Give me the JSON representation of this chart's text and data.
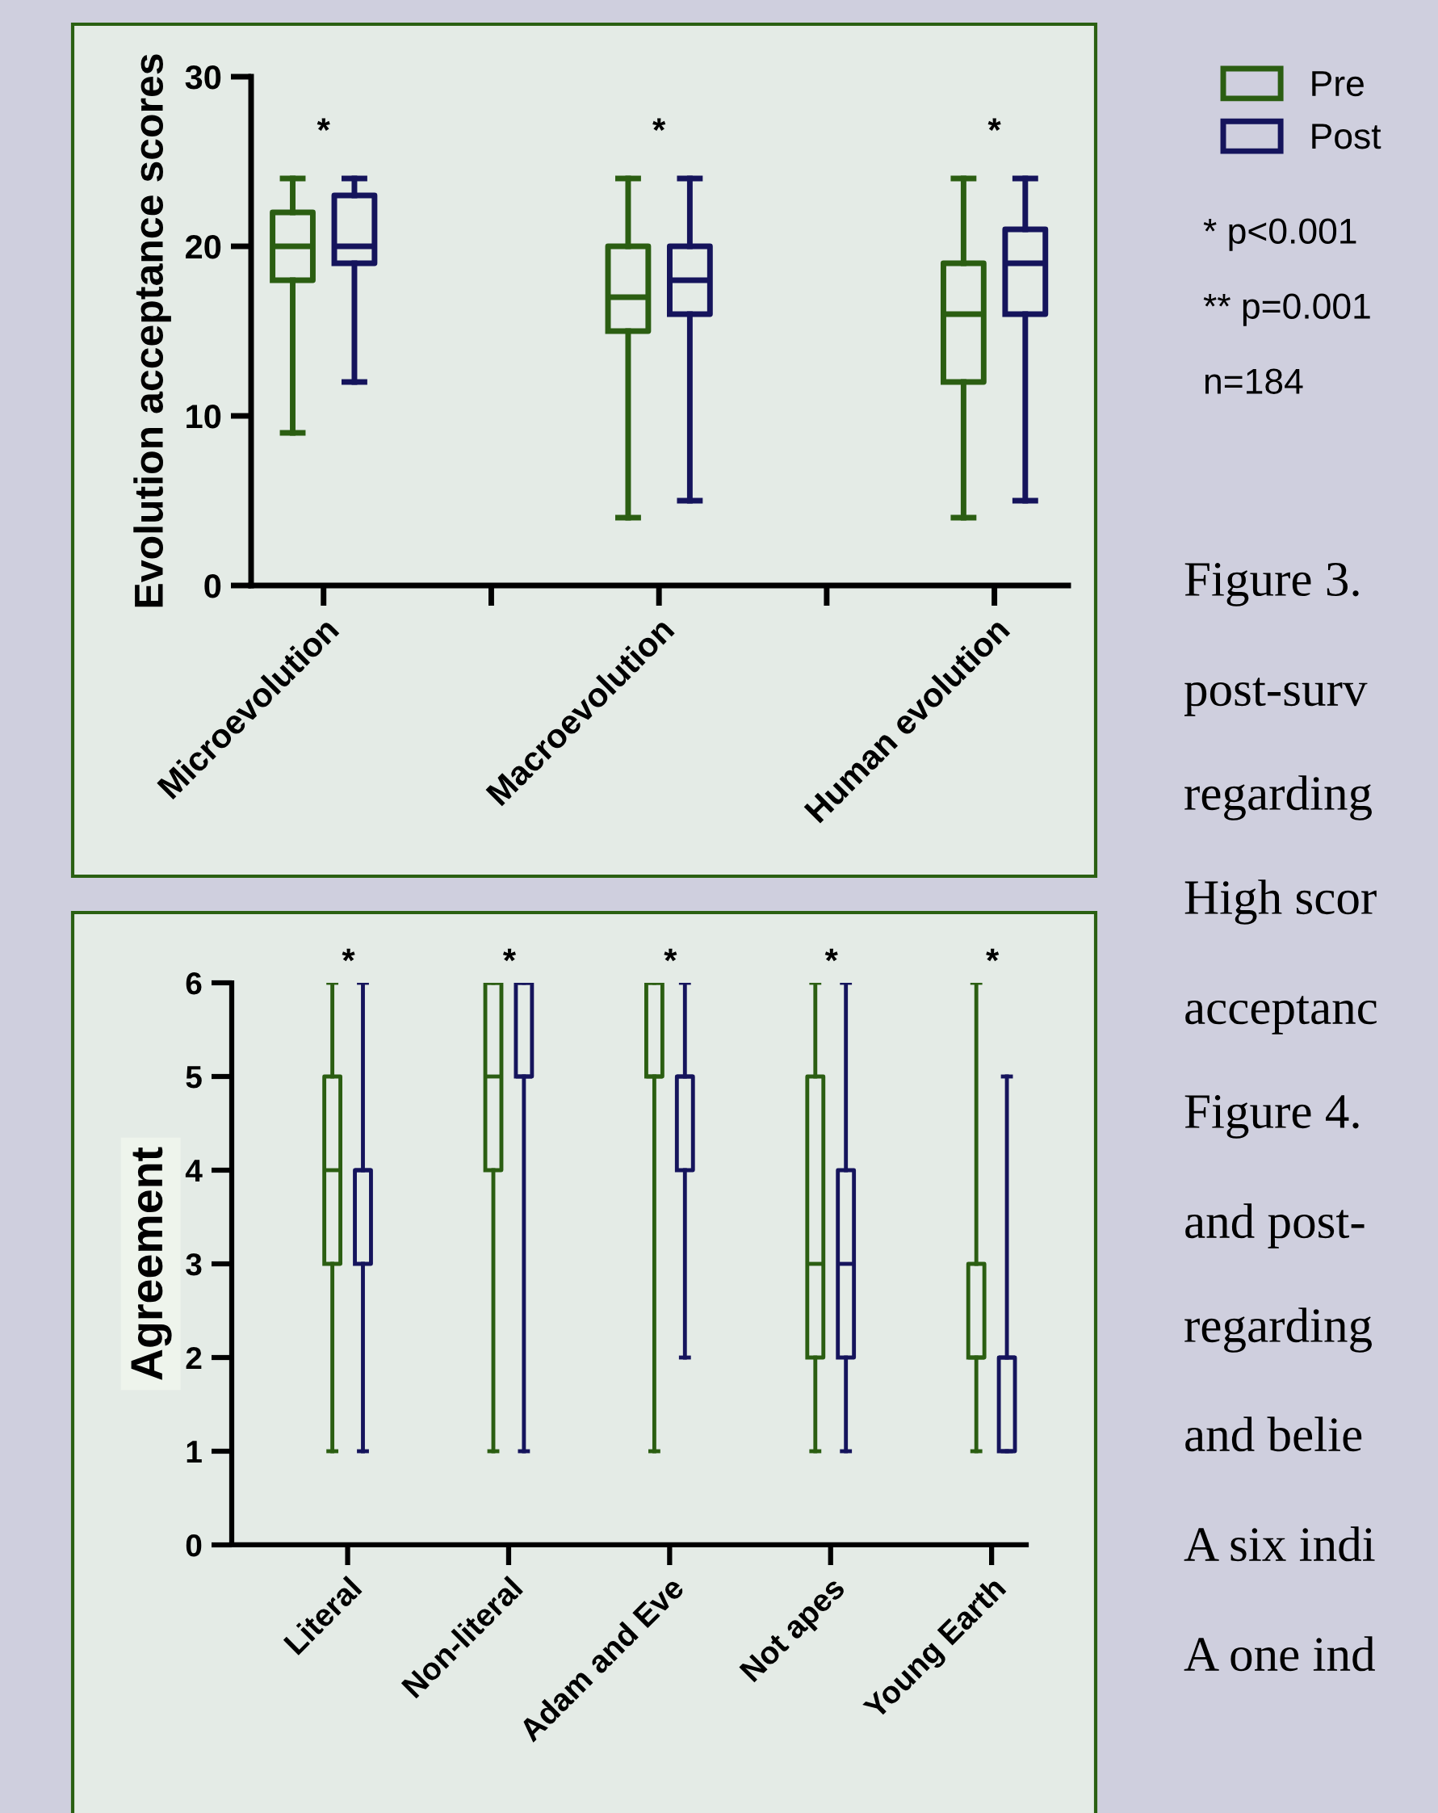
{
  "chart_data": [
    {
      "type": "box",
      "ylabel": "Evolution acceptance scores",
      "categories": [
        "Microevolution",
        "Macroevolution",
        "Human evolution"
      ],
      "ylim": [
        0,
        30
      ],
      "yticks": [
        0,
        10,
        20,
        30
      ],
      "legend": "right",
      "grid": false,
      "series": [
        {
          "name": "Pre",
          "color": "#2b5e12",
          "boxes": [
            {
              "low": 9,
              "q1": 18,
              "median": 20,
              "q3": 22,
              "high": 24
            },
            {
              "low": 4,
              "q1": 15,
              "median": 17,
              "q3": 20,
              "high": 24
            },
            {
              "low": 4,
              "q1": 12,
              "median": 16,
              "q3": 19,
              "high": 24
            }
          ]
        },
        {
          "name": "Post",
          "color": "#15145c",
          "boxes": [
            {
              "low": 12,
              "q1": 19,
              "median": 20,
              "q3": 23,
              "high": 24
            },
            {
              "low": 5,
              "q1": 16,
              "median": 18,
              "q3": 20,
              "high": 24
            },
            {
              "low": 5,
              "q1": 16,
              "median": 19,
              "q3": 21,
              "high": 24
            }
          ]
        }
      ],
      "annotations": [
        "*",
        "*",
        "*",
        "* p<0.001",
        "** p=0.001",
        "n=184"
      ]
    },
    {
      "type": "box",
      "ylabel": "Agreement",
      "categories": [
        "Literal",
        "Non-literal",
        "Adam and Eve",
        "Not apes",
        "Young Earth"
      ],
      "ylim": [
        0,
        6
      ],
      "yticks": [
        0,
        1,
        2,
        3,
        4,
        5,
        6
      ],
      "legend": false,
      "grid": false,
      "series": [
        {
          "color": "#2b5e12",
          "boxes": [
            {
              "low": 1,
              "q1": 3,
              "median": 4,
              "q3": 5,
              "high": 6
            },
            {
              "low": 1,
              "q1": 4,
              "median": 5,
              "q3": 6,
              "high": 6
            },
            {
              "low": 1,
              "q1": 5,
              "median": 5,
              "q3": 6,
              "high": 6
            },
            {
              "low": 1,
              "q1": 2,
              "median": 3,
              "q3": 5,
              "high": 6
            },
            {
              "low": 1,
              "q1": 2,
              "median": 2,
              "q3": 3,
              "high": 6
            }
          ]
        },
        {
          "color": "#15145c",
          "boxes": [
            {
              "low": 1,
              "q1": 3,
              "median": 4,
              "q3": 4,
              "high": 6
            },
            {
              "low": 1,
              "q1": 5,
              "median": 5,
              "q3": 6,
              "high": 6
            },
            {
              "low": 2,
              "q1": 4,
              "median": 5,
              "q3": 5,
              "high": 6
            },
            {
              "low": 1,
              "q1": 2,
              "median": 3,
              "q3": 4,
              "high": 6
            },
            {
              "low": 1,
              "q1": 1,
              "median": 2,
              "q3": 2,
              "high": 5
            }
          ]
        }
      ],
      "annotations": [
        "*",
        "*",
        "*",
        "*",
        "*",
        "Figure 3.",
        "post-surv",
        "regarding",
        "High scor",
        "acceptanc",
        "Figure 4.",
        "and post-",
        "regarding",
        "and belie",
        "A six indi",
        "A one ind"
      ]
    }
  ]
}
